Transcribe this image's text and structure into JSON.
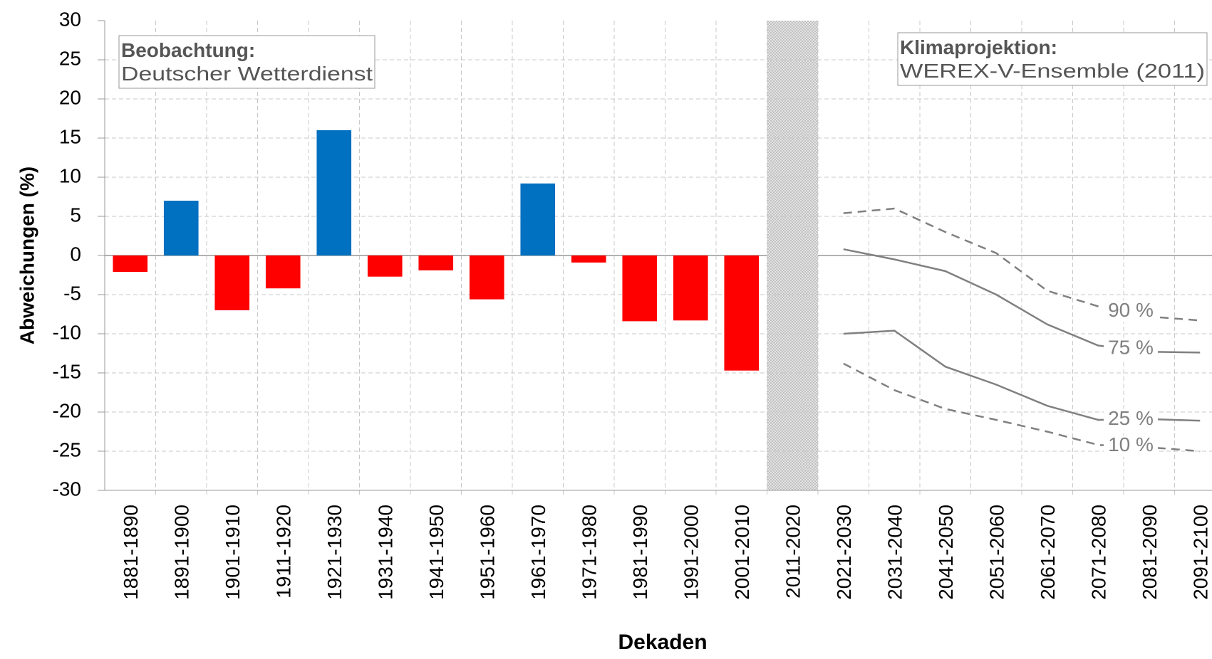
{
  "chart_data": {
    "type": "bar",
    "x_label": "Dekaden",
    "y_label": "Abweichungen (%)",
    "annotations": [
      {
        "title": "Beobachtung:",
        "text": "Deutscher Wetterdienst"
      },
      {
        "title": "Klimaprojektion:",
        "text": "WEREX-V-Ensemble (2011)"
      }
    ],
    "categories": [
      "1881-1890",
      "1891-1900",
      "1901-1910",
      "1911-1920",
      "1921-1930",
      "1931-1940",
      "1941-1950",
      "1951-1960",
      "1961-1970",
      "1971-1980",
      "1981-1990",
      "1991-2000",
      "2001-2010",
      "2011-2020",
      "2021-2030",
      "2031-2040",
      "2041-2050",
      "2051-2060",
      "2061-2070",
      "2071-2080",
      "2081-2090",
      "2091-2100"
    ],
    "values": [
      -2.1,
      7,
      -7,
      -4.2,
      16,
      -2.7,
      -1.9,
      -5.6,
      9.2,
      -0.9,
      -8.4,
      -8.3,
      -14.7,
      null,
      null,
      null,
      null,
      null,
      null,
      null,
      null,
      null
    ],
    "colors": [
      "#ff0000",
      "#0070c0",
      "#ff0000",
      "#ff0000",
      "#0070c0",
      "#ff0000",
      "#ff0000",
      "#ff0000",
      "#0070c0",
      "#ff0000",
      "#ff0000",
      "#ff0000",
      "#ff0000",
      null,
      null,
      null,
      null,
      null,
      null,
      null,
      null,
      null
    ],
    "series": [
      {
        "name": "90 %",
        "color": "#808080",
        "dashed": true,
        "values": [
          null,
          null,
          null,
          null,
          null,
          null,
          null,
          null,
          null,
          null,
          null,
          null,
          null,
          null,
          5.4,
          6,
          3,
          0.3,
          -4.5,
          -6.5,
          -7.8,
          -8.3
        ]
      },
      {
        "name": "75 %",
        "color": "#808080",
        "dashed": false,
        "values": [
          null,
          null,
          null,
          null,
          null,
          null,
          null,
          null,
          null,
          null,
          null,
          null,
          null,
          null,
          0.8,
          -0.5,
          -2,
          -5,
          -8.8,
          -11.5,
          -12.3,
          -12.4
        ]
      },
      {
        "name": "25 %",
        "color": "#808080",
        "dashed": false,
        "values": [
          null,
          null,
          null,
          null,
          null,
          null,
          null,
          null,
          null,
          null,
          null,
          null,
          null,
          null,
          -10,
          -9.6,
          -14.2,
          -16.5,
          -19.2,
          -21,
          -20.9,
          -21.1
        ]
      },
      {
        "name": "10 %",
        "color": "#808080",
        "dashed": true,
        "values": [
          null,
          null,
          null,
          null,
          null,
          null,
          null,
          null,
          null,
          null,
          null,
          null,
          null,
          null,
          -13.8,
          -17.2,
          -19.6,
          -21,
          -22.5,
          -24.2,
          -24.5,
          -25
        ]
      }
    ],
    "ylim": [
      -30,
      30
    ],
    "yticks": [
      -30,
      -25,
      -20,
      -15,
      -10,
      -5,
      0,
      5,
      10,
      15,
      20,
      25,
      30
    ],
    "grid": true
  }
}
